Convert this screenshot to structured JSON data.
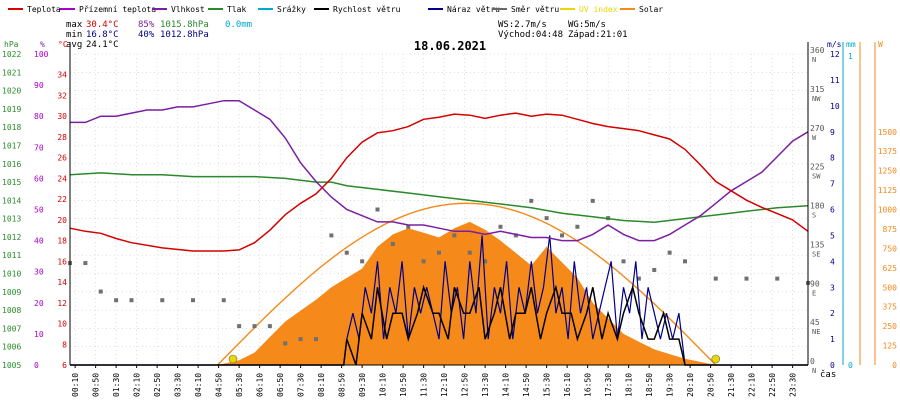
{
  "legend": [
    {
      "label": "Teplota",
      "color": "#d40000"
    },
    {
      "label": "Přízemní teplota",
      "color": "#aa00cc"
    },
    {
      "label": "Vlhkost",
      "color": "#7a1fa2"
    },
    {
      "label": "Tlak",
      "color": "#2a8a2a"
    },
    {
      "label": "Srážky",
      "color": "#00aacc"
    },
    {
      "label": "Rychlost větru",
      "color": "#000000"
    },
    {
      "label": "Náraz větru",
      "color": "#00008b"
    },
    {
      "label": "Směr větru",
      "color": "#666666"
    },
    {
      "label": "UV index",
      "color": "#e6d800"
    },
    {
      "label": "Solar",
      "color": "#f5891a"
    }
  ],
  "stats": {
    "max_label": "max",
    "max_temp": "30.4°C",
    "max_hum": "85%",
    "max_press": "1015.8hPa",
    "max_rain": "0.0mm",
    "min_label": "min",
    "min_temp": "16.8°C",
    "min_hum": "40%",
    "min_press": "1012.8hPa",
    "avg_label": "avg",
    "avg_temp": "24.1°C",
    "ws": "WS:2.7m/s",
    "wg": "WG:5m/s",
    "sunrise": "Východ:04:48",
    "sunset": "Západ:21:01"
  },
  "title": "18.06.2021",
  "xlabel": "čas",
  "colors": {
    "temp": "#d40000",
    "hum": "#7a1fa2",
    "press": "#2a8a2a",
    "wind": "#000000",
    "gust": "#00008b",
    "dir": "#707070",
    "solar": "#f5891a",
    "solar_fill": "#f5891a",
    "uv": "#e6d800",
    "rain": "#00aacc",
    "axis_right": "#f5891a",
    "grid": "#cccccc"
  },
  "chart_data": {
    "type": "line",
    "title": "18.06.2021",
    "xlabel": "čas",
    "x_ticks": [
      "00:10",
      "00:50",
      "01:30",
      "02:10",
      "02:50",
      "03:30",
      "04:10",
      "04:50",
      "05:30",
      "06:10",
      "06:50",
      "07:30",
      "08:10",
      "08:50",
      "09:30",
      "10:10",
      "10:50",
      "11:30",
      "12:10",
      "12:50",
      "13:30",
      "14:10",
      "14:50",
      "15:30",
      "16:10",
      "16:50",
      "17:30",
      "18:10",
      "18:50",
      "19:30",
      "20:10",
      "20:50",
      "21:30",
      "22:10",
      "22:50",
      "23:30"
    ],
    "axes": {
      "hpa": {
        "label": "hPa",
        "range": [
          1005,
          1022
        ],
        "ticks": [
          1005,
          1006,
          1007,
          1008,
          1009,
          1010,
          1011,
          1012,
          1013,
          1014,
          1015,
          1016,
          1017,
          1018,
          1019,
          1020,
          1021,
          1022
        ]
      },
      "percent": {
        "label": "%",
        "range": [
          0,
          100
        ],
        "ticks": [
          0,
          10,
          20,
          30,
          40,
          50,
          60,
          70,
          80,
          90,
          100
        ]
      },
      "celsius": {
        "label": "°C",
        "range": [
          6,
          36
        ],
        "ticks": [
          6,
          8,
          10,
          12,
          14,
          16,
          18,
          20,
          22,
          24,
          26,
          28,
          30,
          32,
          34
        ]
      },
      "direction": {
        "ticks": [
          "0 N",
          "45 NE",
          "90 E",
          "135 SE",
          "180 S",
          "225 SW",
          "270 W",
          "315 NW",
          "360 N"
        ]
      },
      "ms": {
        "label": "m/s",
        "range": [
          0,
          12
        ],
        "ticks": [
          0,
          1,
          2,
          3,
          4,
          5,
          6,
          7,
          8,
          9,
          10,
          11,
          12
        ]
      },
      "mm": {
        "label": "mm",
        "range": [
          0,
          1
        ],
        "ticks": [
          0,
          1
        ]
      },
      "wm2": {
        "label": "W",
        "range": [
          0,
          2000
        ],
        "ticks": [
          0,
          125,
          250,
          375,
          500,
          625,
          750,
          875,
          1000,
          1125,
          1250,
          1375,
          1500
        ]
      }
    },
    "series": [
      {
        "name": "Teplota",
        "unit": "°C",
        "x_hours": [
          0,
          0.5,
          1,
          1.5,
          2,
          3,
          4,
          4.5,
          5,
          5.5,
          6,
          6.5,
          7,
          7.5,
          8,
          8.5,
          9,
          9.5,
          10,
          10.5,
          11,
          11.5,
          12,
          12.5,
          13,
          13.5,
          14,
          14.5,
          15,
          15.5,
          16,
          16.5,
          17,
          17.5,
          18,
          18.5,
          19,
          19.5,
          20,
          20.5,
          21,
          21.5,
          22,
          22.5,
          23,
          23.5,
          24
        ],
        "values": [
          19.2,
          18.9,
          18.7,
          18.2,
          17.8,
          17.3,
          17.0,
          17.0,
          17.0,
          17.1,
          17.8,
          19.0,
          20.5,
          21.6,
          22.5,
          24.0,
          26.0,
          27.5,
          28.4,
          28.6,
          29.0,
          29.7,
          29.9,
          30.2,
          30.1,
          29.8,
          30.1,
          30.3,
          30.0,
          30.2,
          30.1,
          29.7,
          29.3,
          29.0,
          28.8,
          28.6,
          28.2,
          27.8,
          26.8,
          25.3,
          23.7,
          22.8,
          21.9,
          21.2,
          20.6,
          20.0,
          18.9
        ]
      },
      {
        "name": "Vlhkost",
        "unit": "%",
        "x_hours": [
          0,
          0.5,
          1,
          1.5,
          2,
          2.5,
          3,
          3.5,
          4,
          4.5,
          5,
          5.5,
          6,
          6.5,
          7,
          7.5,
          8,
          8.5,
          9,
          9.5,
          10,
          10.5,
          11,
          11.5,
          12,
          12.5,
          13,
          13.5,
          14,
          14.5,
          15,
          15.5,
          16,
          16.5,
          17,
          17.5,
          18,
          18.5,
          19,
          19.5,
          20,
          20.5,
          21,
          21.5,
          22,
          22.5,
          23,
          23.5,
          24
        ],
        "values": [
          78,
          78,
          80,
          80,
          81,
          82,
          82,
          83,
          83,
          84,
          85,
          85,
          82,
          79,
          73,
          65,
          59,
          54,
          50,
          48,
          46,
          46,
          45,
          45,
          44,
          43,
          43,
          42,
          43,
          42,
          41,
          41,
          40,
          40,
          42,
          45,
          42,
          40,
          40,
          42,
          45,
          48,
          52,
          56,
          59,
          62,
          67,
          72,
          75
        ]
      },
      {
        "name": "Tlak",
        "unit": "hPa",
        "x_hours": [
          0,
          1,
          2,
          3,
          4,
          5,
          6,
          7,
          7.5,
          8,
          8.5,
          9,
          10,
          11,
          12,
          13,
          14,
          15,
          16,
          17,
          18,
          19,
          20,
          21,
          22,
          23,
          24
        ],
        "values": [
          1015.4,
          1015.5,
          1015.4,
          1015.4,
          1015.3,
          1015.3,
          1015.3,
          1015.2,
          1015.1,
          1015.0,
          1015.0,
          1014.8,
          1014.6,
          1014.4,
          1014.2,
          1014.0,
          1013.8,
          1013.6,
          1013.3,
          1013.1,
          1012.9,
          1012.8,
          1013.0,
          1013.2,
          1013.4,
          1013.6,
          1013.7
        ]
      },
      {
        "name": "Rychlost větru",
        "unit": "m/s",
        "x_hours": [
          0,
          8.9,
          9.0,
          9.3,
          9.5,
          9.8,
          10.0,
          10.3,
          10.5,
          10.8,
          11.0,
          11.3,
          11.5,
          11.8,
          12.0,
          12.3,
          12.5,
          12.8,
          13.0,
          13.3,
          13.5,
          13.8,
          14.0,
          14.3,
          14.5,
          14.8,
          15.0,
          15.3,
          15.5,
          15.8,
          16.0,
          16.3,
          16.5,
          16.8,
          17.0,
          17.3,
          17.5,
          17.8,
          18.0,
          18.3,
          18.5,
          18.8,
          19.0,
          19.3,
          19.5,
          19.8,
          20.0,
          24
        ],
        "values": [
          0,
          0,
          1,
          0,
          2,
          1,
          3,
          1,
          2,
          2,
          1,
          2,
          3,
          2,
          2,
          1,
          3,
          2,
          2,
          3,
          1,
          2,
          3,
          1,
          2,
          2,
          3,
          1,
          2,
          3,
          2,
          2,
          1,
          2,
          3,
          1,
          2,
          1,
          2,
          3,
          2,
          1,
          1,
          2,
          1,
          1,
          0,
          0
        ]
      },
      {
        "name": "Náraz větru",
        "unit": "m/s",
        "x_hours": [
          0,
          8.9,
          9.0,
          9.2,
          9.4,
          9.6,
          9.8,
          10.0,
          10.2,
          10.4,
          10.6,
          10.8,
          11.0,
          11.2,
          11.4,
          11.6,
          11.8,
          12.0,
          12.2,
          12.4,
          12.6,
          12.8,
          13.0,
          13.2,
          13.4,
          13.6,
          13.8,
          14.0,
          14.2,
          14.4,
          14.6,
          14.8,
          15.0,
          15.2,
          15.4,
          15.6,
          15.8,
          16.0,
          16.2,
          16.4,
          16.6,
          16.8,
          17.0,
          17.2,
          17.4,
          17.6,
          17.8,
          18.0,
          18.2,
          18.4,
          18.6,
          18.8,
          19.0,
          19.2,
          19.4,
          19.6,
          19.8,
          20.0,
          24
        ],
        "values": [
          0,
          0,
          1,
          2,
          1,
          3,
          2,
          4,
          1,
          3,
          2,
          4,
          1,
          3,
          2,
          3,
          2,
          1,
          4,
          2,
          3,
          1,
          4,
          2,
          5,
          1,
          3,
          2,
          4,
          1,
          3,
          2,
          4,
          2,
          3,
          5,
          2,
          3,
          1,
          4,
          2,
          3,
          1,
          2,
          3,
          4,
          1,
          3,
          2,
          4,
          1,
          3,
          2,
          1,
          2,
          1,
          2,
          0,
          0
        ]
      },
      {
        "name": "Směr větru",
        "unit": "°",
        "note": "scatter",
        "x_hours": [
          0,
          0.5,
          1,
          1.5,
          2,
          3,
          4,
          5,
          5.5,
          6,
          6.5,
          7,
          7.5,
          8,
          8.5,
          9,
          9.5,
          10,
          10.5,
          11,
          11.5,
          12,
          12.5,
          13,
          13.5,
          14,
          14.5,
          15,
          15.5,
          16,
          16.5,
          17,
          17.5,
          18,
          18.5,
          19,
          19.5,
          20,
          21,
          22,
          23,
          24
        ],
        "values": [
          118,
          118,
          85,
          75,
          75,
          75,
          75,
          75,
          45,
          45,
          45,
          25,
          30,
          30,
          150,
          130,
          120,
          180,
          140,
          160,
          120,
          130,
          150,
          130,
          120,
          160,
          150,
          190,
          170,
          150,
          160,
          190,
          170,
          120,
          100,
          110,
          130,
          120,
          100,
          100,
          100,
          95
        ]
      },
      {
        "name": "Solar",
        "unit": "W/m²",
        "x_hours": [
          4.8,
          5.5,
          6,
          6.5,
          7,
          7.5,
          8,
          8.5,
          9,
          9.5,
          10,
          10.5,
          11,
          11.5,
          12,
          12.5,
          13,
          13.5,
          14,
          14.5,
          15,
          15.5,
          16,
          16.5,
          17,
          17.5,
          18,
          18.5,
          19,
          19.5,
          20,
          20.5,
          21.0
        ],
        "values": [
          0,
          30,
          80,
          180,
          280,
          350,
          420,
          500,
          560,
          620,
          760,
          840,
          880,
          850,
          820,
          880,
          920,
          870,
          800,
          720,
          640,
          760,
          660,
          560,
          400,
          300,
          200,
          150,
          100,
          70,
          40,
          20,
          0
        ]
      },
      {
        "name": "UV index",
        "unit": "",
        "x_hours": [
          5.3,
          21.0
        ],
        "values": [
          0,
          0
        ]
      }
    ]
  }
}
